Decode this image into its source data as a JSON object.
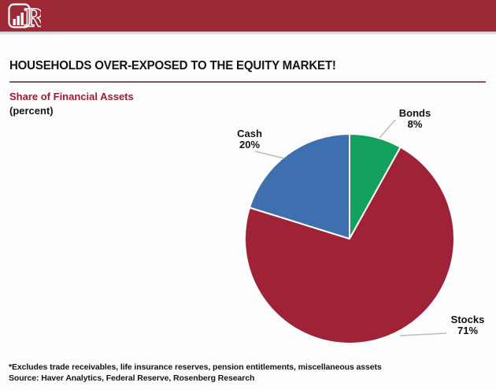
{
  "title": "HOUSEHOLDS OVER-EXPOSED TO THE EQUITY MARKET!",
  "subtitle": "Share of Financial Assets",
  "unit_label": "(percent)",
  "chart_data": {
    "type": "pie",
    "title": "Share of Financial Assets (percent)",
    "start_angle_deg": 0,
    "direction": "clockwise-from-12-oclock",
    "slices": [
      {
        "label": "Bonds",
        "value": 8,
        "display": "8%",
        "color": "#12a15c"
      },
      {
        "label": "Stocks",
        "value": 71,
        "display": "71%",
        "color": "#a02236"
      },
      {
        "label": "Cash",
        "value": 20,
        "display": "20%",
        "color": "#3e6fae"
      }
    ]
  },
  "footnote": "*Excludes trade receivables, life insurance reserves, pension entitlements, miscellaneous assets",
  "source": "Source: Haver Analytics, Federal Reserve, Rosenberg Research",
  "colors": {
    "header_red": "#9d2935",
    "title_rule": "#8d5968",
    "subtitle_red": "#9e1b32",
    "leader_line_gray": "#bcbcbc"
  }
}
